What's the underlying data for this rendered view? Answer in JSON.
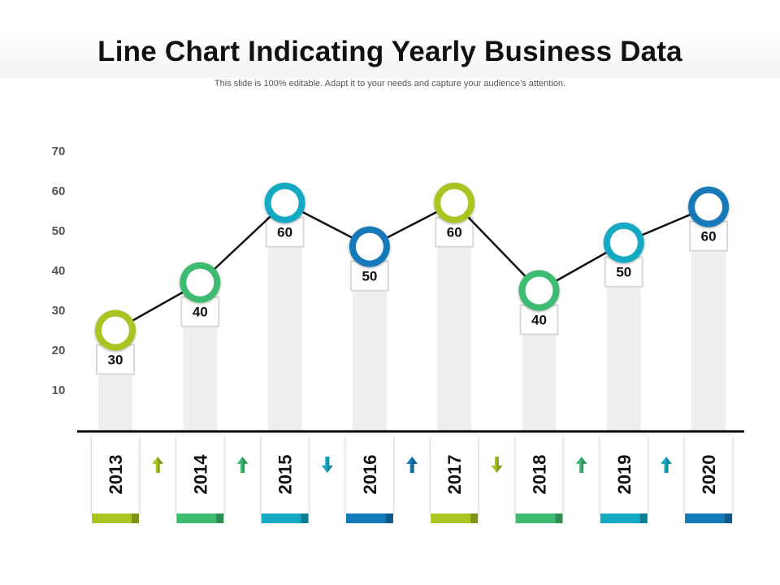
{
  "title": "Line Chart Indicating Yearly Business Data",
  "subtitle": "This slide is 100% editable. Adapt it to your needs and capture your audience’s attention.",
  "colors": {
    "lime": "#a8c520",
    "green": "#3dbb70",
    "teal": "#13a9c3",
    "blue": "#1479b8",
    "bar": "#efefef",
    "axis": "#000000"
  },
  "chart_data": {
    "type": "line",
    "title": "Line Chart Indicating Yearly Business Data",
    "xlabel": "",
    "ylabel": "",
    "ylim": [
      0,
      70
    ],
    "yticks": [
      10,
      20,
      30,
      40,
      50,
      60,
      70
    ],
    "grid": false,
    "categories": [
      "2013",
      "2014",
      "2015",
      "2016",
      "2017",
      "2018",
      "2019",
      "2020"
    ],
    "values": [
      30,
      40,
      60,
      50,
      60,
      40,
      50,
      60
    ],
    "marker_values": [
      25,
      37,
      57,
      46,
      57,
      35,
      47,
      56
    ],
    "marker_colors": [
      "lime",
      "green",
      "teal",
      "blue",
      "lime",
      "green",
      "teal",
      "blue"
    ],
    "data_labels": [
      "30",
      "40",
      "60",
      "50",
      "60",
      "40",
      "50",
      "60"
    ],
    "arrows": [
      {
        "direction": "up",
        "color": "lime"
      },
      {
        "direction": "up",
        "color": "green"
      },
      {
        "direction": "down",
        "color": "teal"
      },
      {
        "direction": "up",
        "color": "blue"
      },
      {
        "direction": "down",
        "color": "lime"
      },
      {
        "direction": "up",
        "color": "green"
      },
      {
        "direction": "up",
        "color": "teal"
      }
    ]
  }
}
